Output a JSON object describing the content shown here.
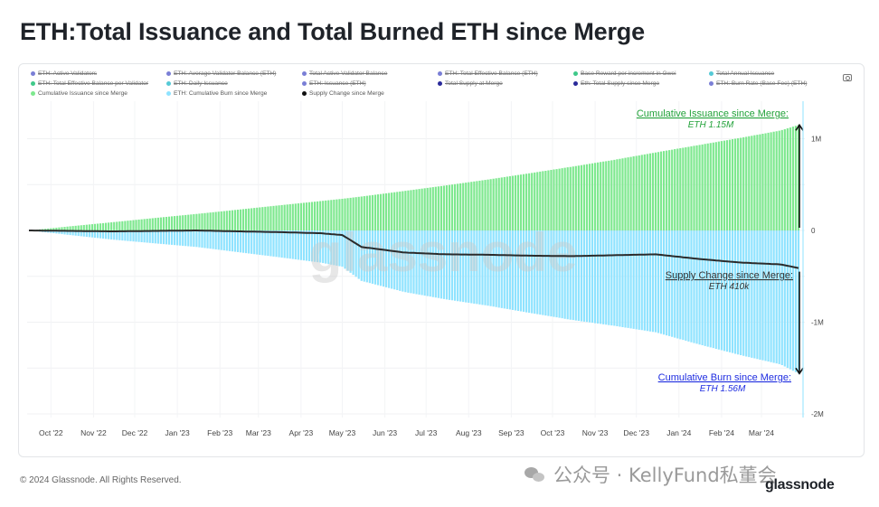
{
  "title": "ETH:Total Issuance and Total Burned ETH since Merge",
  "legend": [
    {
      "label": "ETH: Active Validators",
      "color": "#7a7fd6",
      "disabled": true
    },
    {
      "label": "ETH: Average Validator Balance (ETH)",
      "color": "#7a7fd6",
      "disabled": true
    },
    {
      "label": "Total Active Validator Balance",
      "color": "#7a7fd6",
      "disabled": true
    },
    {
      "label": "ETH: Total Effective Balance (ETH)",
      "color": "#7a7fd6",
      "disabled": true
    },
    {
      "label": "Base Reward per increment in Gwei",
      "color": "#3fc98a",
      "disabled": true
    },
    {
      "label": "Total Annual Issuance",
      "color": "#55c9d6",
      "disabled": true
    },
    {
      "label": "ETH: Total Effective Balance per Validator",
      "color": "#3fc98a",
      "disabled": true
    },
    {
      "label": "ETH: Daily Issuance",
      "color": "#55c9d6",
      "disabled": true
    },
    {
      "label": "ETH: Issuance (ETH)",
      "color": "#7a7fd6",
      "disabled": true
    },
    {
      "label": "Total Supply at Merge",
      "color": "#2a2a9a",
      "disabled": true
    },
    {
      "label": "Eth: Total Supply since Merge",
      "color": "#2a2a9a",
      "disabled": true
    },
    {
      "label": "ETH: Burn Rate (Base Fee) (ETH)",
      "color": "#7a7fd6",
      "disabled": true
    },
    {
      "label": "Cumulative Issuance since Merge",
      "color": "#7ee88f",
      "disabled": false
    },
    {
      "label": "ETH: Cumulative Burn since Merge",
      "color": "#8fe3ff",
      "disabled": false
    },
    {
      "label": "Supply Change since Merge",
      "color": "#111111",
      "disabled": false
    }
  ],
  "colors": {
    "issuance": "#7ee88f",
    "burn": "#8fe3ff",
    "supply": "#2b2b2b",
    "annot_green": "#22a23a",
    "annot_blue": "#1f2de0",
    "annot_dark": "#333333"
  },
  "annotations": {
    "issuance_label": "Cumulative Issuance since Merge:",
    "issuance_value": "ETH 1.15M",
    "supply_label": "Supply Change since Merge:",
    "supply_value": "ETH 410k",
    "burn_label": "Cumulative Burn since Merge:",
    "burn_value": "ETH 1.56M"
  },
  "chart_data": {
    "type": "area",
    "x": [
      "2022-09-15",
      "2022-10-15",
      "2022-11-15",
      "2022-12-15",
      "2023-01-15",
      "2023-02-15",
      "2023-03-15",
      "2023-04-15",
      "2023-05-01",
      "2023-05-15",
      "2023-06-15",
      "2023-07-15",
      "2023-08-15",
      "2023-09-15",
      "2023-10-15",
      "2023-11-15",
      "2023-12-15",
      "2024-01-15",
      "2024-02-15",
      "2024-03-15",
      "2024-03-28"
    ],
    "series": [
      {
        "name": "Cumulative Issuance since Merge",
        "values": [
          0,
          0.045,
          0.09,
          0.135,
          0.18,
          0.228,
          0.272,
          0.32,
          0.345,
          0.37,
          0.43,
          0.49,
          0.555,
          0.625,
          0.695,
          0.77,
          0.85,
          0.93,
          1.01,
          1.09,
          1.15
        ]
      },
      {
        "name": "ETH: Cumulative Burn since Merge",
        "values": [
          0,
          -0.05,
          -0.1,
          -0.14,
          -0.18,
          -0.238,
          -0.29,
          -0.35,
          -0.395,
          -0.55,
          -0.67,
          -0.75,
          -0.82,
          -0.9,
          -0.975,
          -1.04,
          -1.11,
          -1.24,
          -1.36,
          -1.46,
          -1.56
        ]
      },
      {
        "name": "Supply Change since Merge",
        "values": [
          0,
          -0.005,
          -0.01,
          -0.005,
          0.0,
          -0.01,
          -0.018,
          -0.03,
          -0.05,
          -0.18,
          -0.24,
          -0.26,
          -0.265,
          -0.275,
          -0.28,
          -0.27,
          -0.26,
          -0.31,
          -0.35,
          -0.37,
          -0.41
        ]
      }
    ],
    "x_tick_labels": [
      "Oct '22",
      "Nov '22",
      "Dec '22",
      "Jan '23",
      "Feb '23",
      "Mar '23",
      "Apr '23",
      "May '23",
      "Jun '23",
      "Jul '23",
      "Aug '23",
      "Sep '23",
      "Oct '23",
      "Nov '23",
      "Dec '23",
      "Jan '24",
      "Feb '24",
      "Mar '24"
    ],
    "x_tick_dates": [
      "2022-10-01",
      "2022-11-01",
      "2022-12-01",
      "2023-01-01",
      "2023-02-01",
      "2023-03-01",
      "2023-04-01",
      "2023-05-01",
      "2023-06-01",
      "2023-07-01",
      "2023-08-01",
      "2023-09-01",
      "2023-10-01",
      "2023-11-01",
      "2023-12-01",
      "2024-01-01",
      "2024-02-01",
      "2024-03-01"
    ],
    "y_ticks": [
      1,
      0,
      -1,
      -2
    ],
    "y_tick_labels": [
      "1M",
      "0",
      "-1M",
      "-2M"
    ],
    "ylim": [
      -2,
      1.2
    ],
    "unit": "M ETH",
    "grid": true,
    "legend_position": "top"
  },
  "watermark": "glassnode",
  "footer": {
    "copyright": "© 2024 Glassnode. All Rights Reserved.",
    "chat_text": "公众号 · KellyFund私董会",
    "logo": "glassnode"
  }
}
